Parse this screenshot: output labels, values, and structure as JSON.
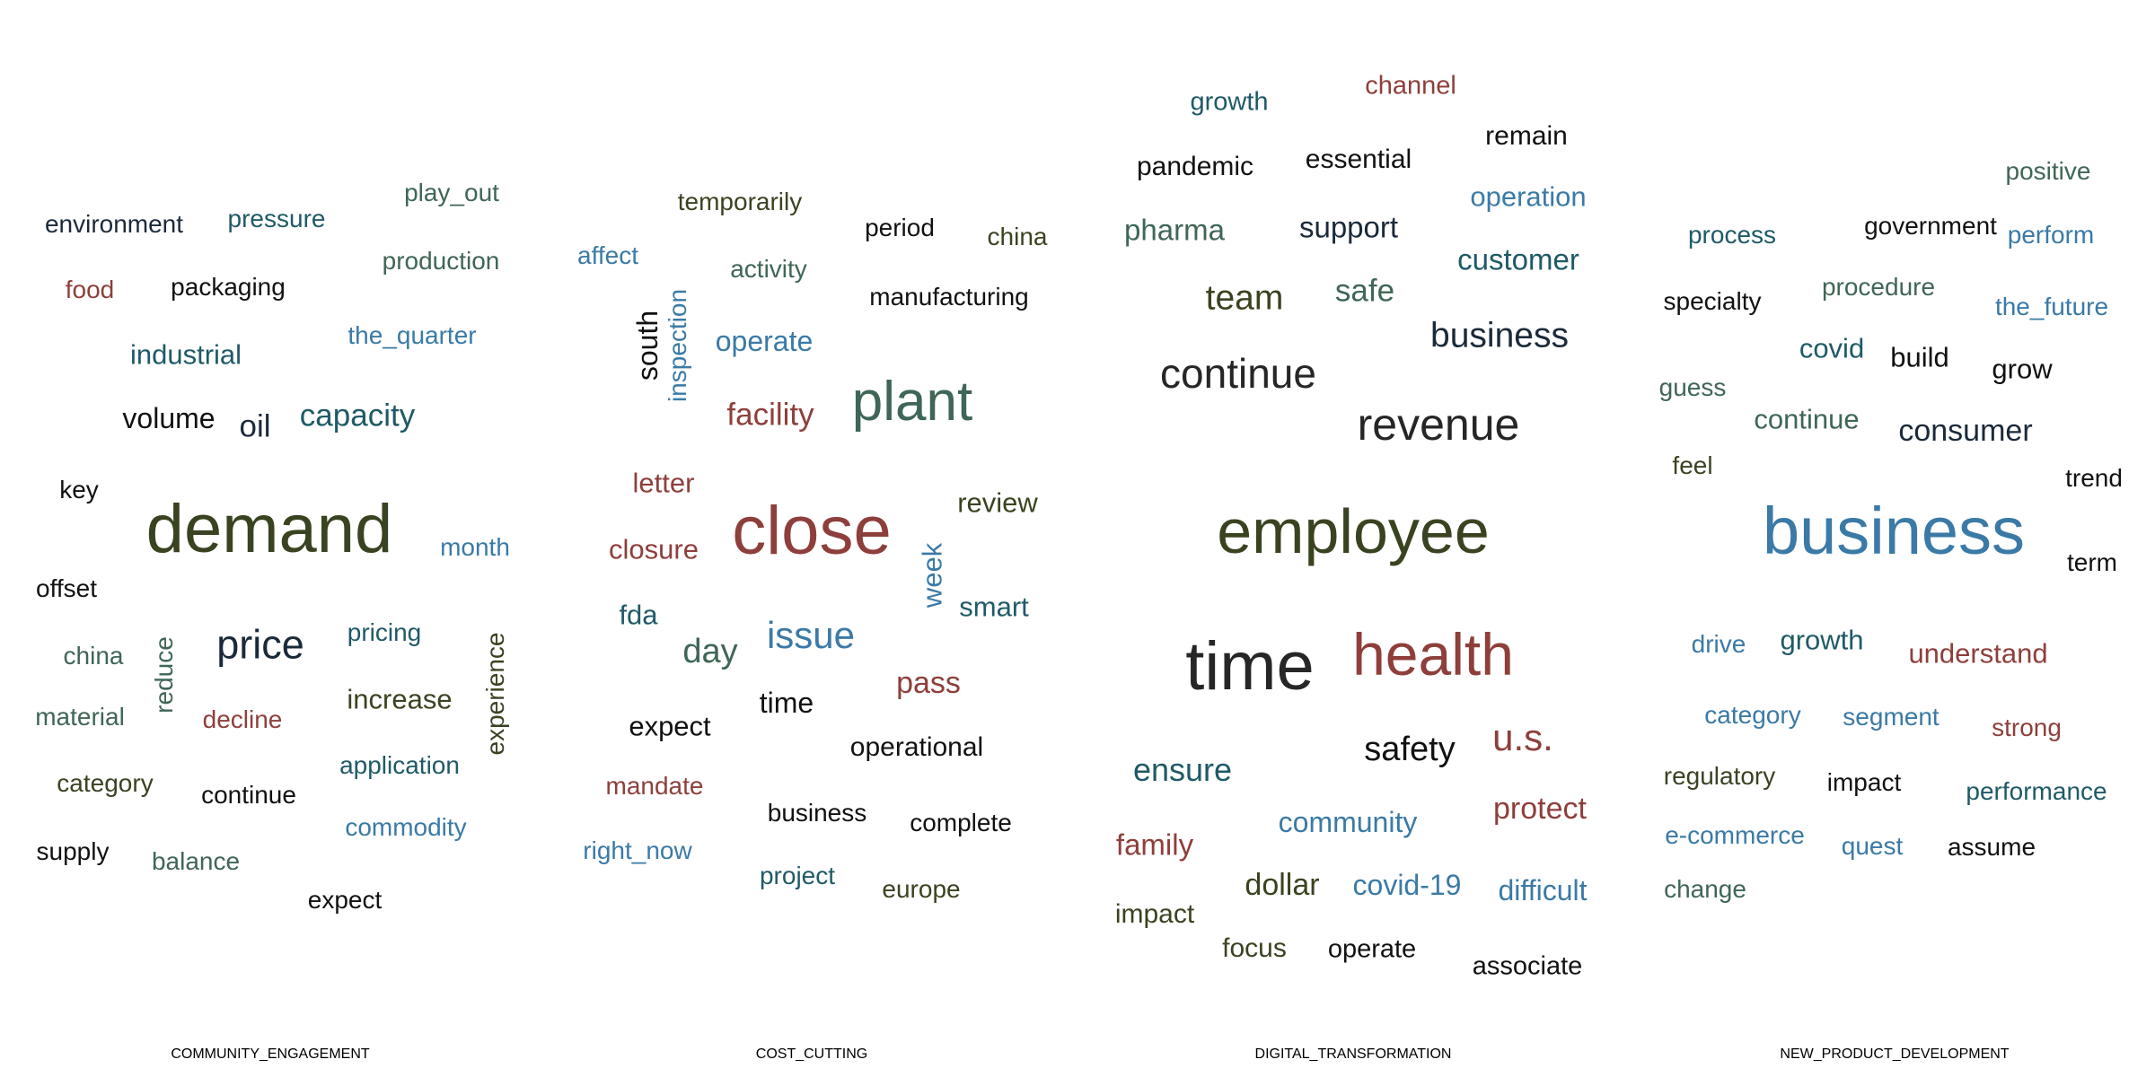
{
  "colors": {
    "dark_navy": "#1b2a3a",
    "olive": "#3a4321",
    "teal": "#1f5a66",
    "slate_green": "#3f6656",
    "blue": "#3b7aa6",
    "brick": "#8e3f3b",
    "black": "#111111",
    "charcoal": "#262626"
  },
  "panels": [
    {
      "title": "COMMUNITY_ENGAGEMENT",
      "words": [
        {
          "text": "demand",
          "color": "#3a4321"
        },
        {
          "text": "price",
          "color": "#1b2a3a"
        },
        {
          "text": "capacity",
          "color": "#1f5a66"
        },
        {
          "text": "oil",
          "color": "#1b2a3a"
        },
        {
          "text": "volume",
          "color": "#111111"
        },
        {
          "text": "industrial",
          "color": "#1f5a66"
        },
        {
          "text": "environment",
          "color": "#1b2a3a"
        },
        {
          "text": "pressure",
          "color": "#1f5a66"
        },
        {
          "text": "play_out",
          "color": "#3f6656"
        },
        {
          "text": "production",
          "color": "#3f6656"
        },
        {
          "text": "food",
          "color": "#8e3f3b"
        },
        {
          "text": "packaging",
          "color": "#111111"
        },
        {
          "text": "the_quarter",
          "color": "#3b7aa6"
        },
        {
          "text": "key",
          "color": "#111111"
        },
        {
          "text": "month",
          "color": "#3b7aa6"
        },
        {
          "text": "offset",
          "color": "#111111"
        },
        {
          "text": "china",
          "color": "#3f6656"
        },
        {
          "text": "reduce",
          "color": "#3f6656"
        },
        {
          "text": "pricing",
          "color": "#1f5a66"
        },
        {
          "text": "experience",
          "color": "#3a4321"
        },
        {
          "text": "increase",
          "color": "#3a4321"
        },
        {
          "text": "material",
          "color": "#3f6656"
        },
        {
          "text": "decline",
          "color": "#8e3f3b"
        },
        {
          "text": "application",
          "color": "#1f5a66"
        },
        {
          "text": "category",
          "color": "#3a4321"
        },
        {
          "text": "continue",
          "color": "#111111"
        },
        {
          "text": "commodity",
          "color": "#3b7aa6"
        },
        {
          "text": "supply",
          "color": "#111111"
        },
        {
          "text": "balance",
          "color": "#3f6656"
        },
        {
          "text": "expect",
          "color": "#111111"
        }
      ]
    },
    {
      "title": "COST_CUTTING",
      "words": [
        {
          "text": "close",
          "color": "#8e3f3b"
        },
        {
          "text": "plant",
          "color": "#3f6656"
        },
        {
          "text": "issue",
          "color": "#3b7aa6"
        },
        {
          "text": "facility",
          "color": "#8e3f3b"
        },
        {
          "text": "operate",
          "color": "#3b7aa6"
        },
        {
          "text": "temporarily",
          "color": "#3a4321"
        },
        {
          "text": "period",
          "color": "#111111"
        },
        {
          "text": "china",
          "color": "#3a4321"
        },
        {
          "text": "affect",
          "color": "#3b7aa6"
        },
        {
          "text": "activity",
          "color": "#3f6656"
        },
        {
          "text": "manufacturing",
          "color": "#111111"
        },
        {
          "text": "south",
          "color": "#111111"
        },
        {
          "text": "inspection",
          "color": "#3b7aa6"
        },
        {
          "text": "letter",
          "color": "#8e3f3b"
        },
        {
          "text": "review",
          "color": "#3a4321"
        },
        {
          "text": "closure",
          "color": "#8e3f3b"
        },
        {
          "text": "week",
          "color": "#3b7aa6"
        },
        {
          "text": "smart",
          "color": "#1f5a66"
        },
        {
          "text": "fda",
          "color": "#1f5a66"
        },
        {
          "text": "day",
          "color": "#3f6656"
        },
        {
          "text": "pass",
          "color": "#8e3f3b"
        },
        {
          "text": "expect",
          "color": "#111111"
        },
        {
          "text": "time",
          "color": "#111111"
        },
        {
          "text": "operational",
          "color": "#111111"
        },
        {
          "text": "mandate",
          "color": "#8e3f3b"
        },
        {
          "text": "business",
          "color": "#111111"
        },
        {
          "text": "complete",
          "color": "#111111"
        },
        {
          "text": "right_now",
          "color": "#3b7aa6"
        },
        {
          "text": "project",
          "color": "#1f5a66"
        },
        {
          "text": "europe",
          "color": "#3a4321"
        }
      ]
    },
    {
      "title": "DIGITAL_TRANSFORMATION",
      "words": [
        {
          "text": "employee",
          "color": "#3a4321"
        },
        {
          "text": "time",
          "color": "#262626"
        },
        {
          "text": "health",
          "color": "#8e3f3b"
        },
        {
          "text": "revenue",
          "color": "#262626"
        },
        {
          "text": "continue",
          "color": "#262626"
        },
        {
          "text": "business",
          "color": "#1b2a3a"
        },
        {
          "text": "growth",
          "color": "#1f5a66"
        },
        {
          "text": "channel",
          "color": "#8e3f3b"
        },
        {
          "text": "remain",
          "color": "#111111"
        },
        {
          "text": "pandemic",
          "color": "#111111"
        },
        {
          "text": "essential",
          "color": "#111111"
        },
        {
          "text": "operation",
          "color": "#3b7aa6"
        },
        {
          "text": "pharma",
          "color": "#3f6656"
        },
        {
          "text": "support",
          "color": "#1b2a3a"
        },
        {
          "text": "customer",
          "color": "#1f5a66"
        },
        {
          "text": "team",
          "color": "#3a4321"
        },
        {
          "text": "safe",
          "color": "#3f6656"
        },
        {
          "text": "safety",
          "color": "#111111"
        },
        {
          "text": "u.s.",
          "color": "#8e3f3b"
        },
        {
          "text": "ensure",
          "color": "#1f5a66"
        },
        {
          "text": "community",
          "color": "#3b7aa6"
        },
        {
          "text": "protect",
          "color": "#8e3f3b"
        },
        {
          "text": "family",
          "color": "#8e3f3b"
        },
        {
          "text": "dollar",
          "color": "#3a4321"
        },
        {
          "text": "covid-19",
          "color": "#3b7aa6"
        },
        {
          "text": "difficult",
          "color": "#3b7aa6"
        },
        {
          "text": "impact",
          "color": "#3a4321"
        },
        {
          "text": "focus",
          "color": "#3a4321"
        },
        {
          "text": "operate",
          "color": "#111111"
        },
        {
          "text": "associate",
          "color": "#111111"
        }
      ]
    },
    {
      "title": "NEW_PRODUCT_DEVELOPMENT",
      "words": [
        {
          "text": "business",
          "color": "#3b7aa6"
        },
        {
          "text": "positive",
          "color": "#3f6656"
        },
        {
          "text": "process",
          "color": "#1f5a66"
        },
        {
          "text": "government",
          "color": "#111111"
        },
        {
          "text": "perform",
          "color": "#3b7aa6"
        },
        {
          "text": "specialty",
          "color": "#111111"
        },
        {
          "text": "procedure",
          "color": "#3f6656"
        },
        {
          "text": "the_future",
          "color": "#3b7aa6"
        },
        {
          "text": "covid",
          "color": "#1f5a66"
        },
        {
          "text": "build",
          "color": "#111111"
        },
        {
          "text": "grow",
          "color": "#111111"
        },
        {
          "text": "guess",
          "color": "#3f6656"
        },
        {
          "text": "continue",
          "color": "#3f6656"
        },
        {
          "text": "consumer",
          "color": "#1b2a3a"
        },
        {
          "text": "feel",
          "color": "#3a4321"
        },
        {
          "text": "trend",
          "color": "#111111"
        },
        {
          "text": "term",
          "color": "#111111"
        },
        {
          "text": "drive",
          "color": "#3b7aa6"
        },
        {
          "text": "growth",
          "color": "#1f5a66"
        },
        {
          "text": "understand",
          "color": "#8e3f3b"
        },
        {
          "text": "category",
          "color": "#3b7aa6"
        },
        {
          "text": "segment",
          "color": "#3b7aa6"
        },
        {
          "text": "strong",
          "color": "#8e3f3b"
        },
        {
          "text": "regulatory",
          "color": "#3a4321"
        },
        {
          "text": "impact",
          "color": "#111111"
        },
        {
          "text": "performance",
          "color": "#1f5a66"
        },
        {
          "text": "e-commerce",
          "color": "#3b7aa6"
        },
        {
          "text": "quest",
          "color": "#3b7aa6"
        },
        {
          "text": "assume",
          "color": "#111111"
        },
        {
          "text": "change",
          "color": "#3f6656"
        }
      ]
    }
  ]
}
